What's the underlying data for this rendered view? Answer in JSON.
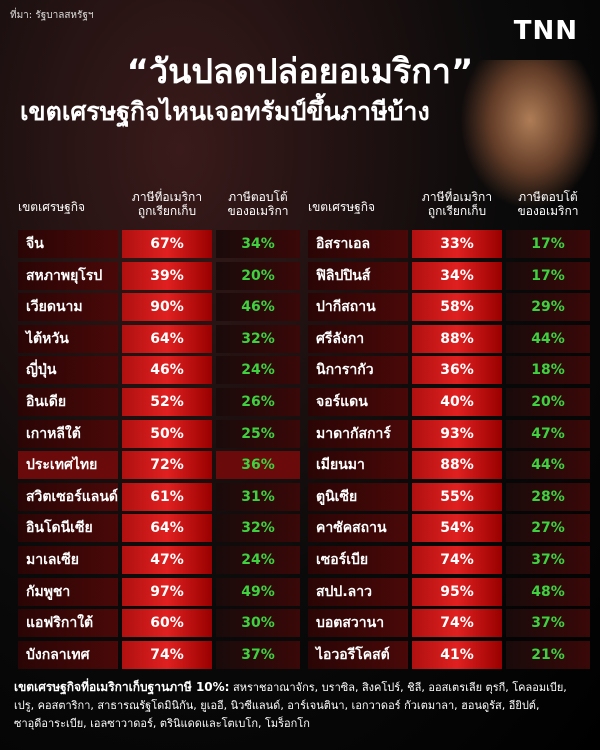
{
  "source": "ที่มา: รัฐบาลสหรัฐฯ",
  "logo": "TNN",
  "title": "“วันปลดปล่อยอเมริกา”",
  "subtitle": "เขตเศรษฐกิจไหนเจอทรัมป์ขึ้นภาษีบ้าง",
  "headers": [
    "เขตเศรษฐกิจ",
    "ภาษีที่อเมริกา\nถูกเรียกเก็บ",
    "ภาษีตอบโต้\nของอเมริกา"
  ],
  "tables": [
    {
      "rows": [
        [
          "จีน",
          "67%",
          "34%"
        ],
        [
          "สหภาพยุโรป",
          "39%",
          "20%"
        ],
        [
          "เวียดนาม",
          "90%",
          "46%"
        ],
        [
          "ไต้หวัน",
          "64%",
          "32%"
        ],
        [
          "ญี่ปุ่น",
          "46%",
          "24%"
        ],
        [
          "อินเดีย",
          "52%",
          "26%"
        ],
        [
          "เกาหลีใต้",
          "50%",
          "25%"
        ],
        [
          "ประเทศไทย",
          "72%",
          "36%"
        ],
        [
          "สวิตเซอร์แลนด์",
          "61%",
          "31%"
        ],
        [
          "อินโดนีเซีย",
          "64%",
          "32%"
        ],
        [
          "มาเลเซีย",
          "47%",
          "24%"
        ],
        [
          "กัมพูชา",
          "97%",
          "49%"
        ],
        [
          "แอฟริกาใต้",
          "60%",
          "30%"
        ],
        [
          "บังกลาเทศ",
          "74%",
          "37%"
        ]
      ],
      "highlight_row": 7
    },
    {
      "rows": [
        [
          "อิสราเอล",
          "33%",
          "17%"
        ],
        [
          "ฟิลิปปินส์",
          "34%",
          "17%"
        ],
        [
          "ปากีสถาน",
          "58%",
          "29%"
        ],
        [
          "ศรีลังกา",
          "88%",
          "44%"
        ],
        [
          "นิการากัว",
          "36%",
          "18%"
        ],
        [
          "จอร์แดน",
          "40%",
          "20%"
        ],
        [
          "มาดากัสการ์",
          "93%",
          "47%"
        ],
        [
          "เมียนมา",
          "88%",
          "44%"
        ],
        [
          "ตูนิเซีย",
          "55%",
          "28%"
        ],
        [
          "คาซัคสถาน",
          "54%",
          "27%"
        ],
        [
          "เซอร์เบีย",
          "74%",
          "37%"
        ],
        [
          "สปป.ลาว",
          "95%",
          "48%"
        ],
        [
          "บอตสวานา",
          "74%",
          "37%"
        ],
        [
          "ไอวอรีโคสต์",
          "41%",
          "21%"
        ]
      ]
    }
  ],
  "footer": {
    "label": "เขตเศรษฐกิจที่อเมริกาเก็บฐานภาษี 10%:",
    "text": "สหราชอาณาจักร, บราซิล, สิงคโปร์, ชิลี, ออสเตรเลีย ตุรกี, โคลอมเบีย, เปรู, คอสตาริกา, สาธารณรัฐโดมินิกัน, ยูเออี, นิวซีแลนด์, อาร์เจนตินา, เอกวาดอร์ กัวเตมาลา, ฮอนดูรัส, อียิปต์, ซาอุดีอาระเบีย, เอลซาวาดอร์, ตรินิแดดและโตเบโก, โมร็อกโก"
  }
}
